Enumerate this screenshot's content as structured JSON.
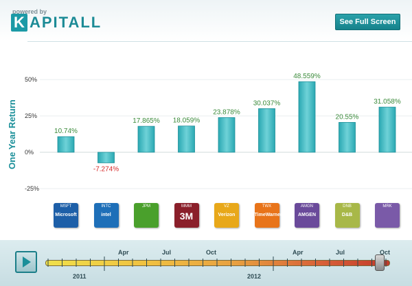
{
  "header": {
    "powered_by": "powered by",
    "logo_initial": "K",
    "logo_rest": "APITALL",
    "full_screen_label": "See Full Screen"
  },
  "chart_data": {
    "type": "bar",
    "title": "",
    "xlabel": "",
    "ylabel": "One Year Return",
    "ylim": [
      -25,
      50
    ],
    "y_ticks": [
      "50%",
      "25%",
      "0%",
      "-25%"
    ],
    "categories": [
      "MSFT",
      "INTC",
      "JPM",
      "MMM",
      "VZ",
      "TWX",
      "AMGN",
      "DNB",
      "MRK"
    ],
    "values": [
      10.74,
      -7.274,
      17.865,
      18.059,
      23.878,
      30.037,
      48.559,
      20.55,
      31.058
    ],
    "value_labels": [
      "10.74%",
      "-7.274%",
      "17.865%",
      "18.059%",
      "23.878%",
      "30.037%",
      "48.559%",
      "20.55%",
      "31.058%"
    ],
    "grid": false,
    "legend": "none",
    "colors": {
      "bar": "#3cbcc4",
      "positive": "#3a8a3a",
      "negative": "#d62828"
    }
  },
  "companies": [
    {
      "ticker": "MSFT",
      "name": "Microsoft",
      "icon": "microsoft-logo-icon",
      "color": "#1d5fa8"
    },
    {
      "ticker": "INTC",
      "name": "intel",
      "icon": "intel-logo-icon",
      "color": "#1e6fb8"
    },
    {
      "ticker": "JPM",
      "name": "",
      "icon": "chase-logo-icon",
      "color": "#4aa02c"
    },
    {
      "ticker": "MMM",
      "name": "3M",
      "icon": "3m-logo-icon",
      "color": "#8a1f2a"
    },
    {
      "ticker": "VZ",
      "name": "Verizon",
      "icon": "verizon-logo-icon",
      "color": "#e8a81a"
    },
    {
      "ticker": "TWX",
      "name": "TimeWarner",
      "icon": "timewarner-logo-icon",
      "color": "#e8741a"
    },
    {
      "ticker": "AMGN",
      "name": "AMGEN",
      "icon": "amgen-logo-icon",
      "color": "#6a4a9a"
    },
    {
      "ticker": "DNB",
      "name": "D&B",
      "icon": "dnb-logo-icon",
      "color": "#a8b848"
    },
    {
      "ticker": "MRK",
      "name": "",
      "icon": "merck-logo-icon",
      "color": "#7a5aa8"
    }
  ],
  "timeline": {
    "months": [
      "Apr",
      "Jul",
      "Oct",
      "Apr",
      "Jul",
      "Oct"
    ],
    "years": [
      "2011",
      "2012"
    ],
    "position": 0.98,
    "colors": {
      "start": "#f0e04a",
      "end": "#c23a2a"
    }
  }
}
